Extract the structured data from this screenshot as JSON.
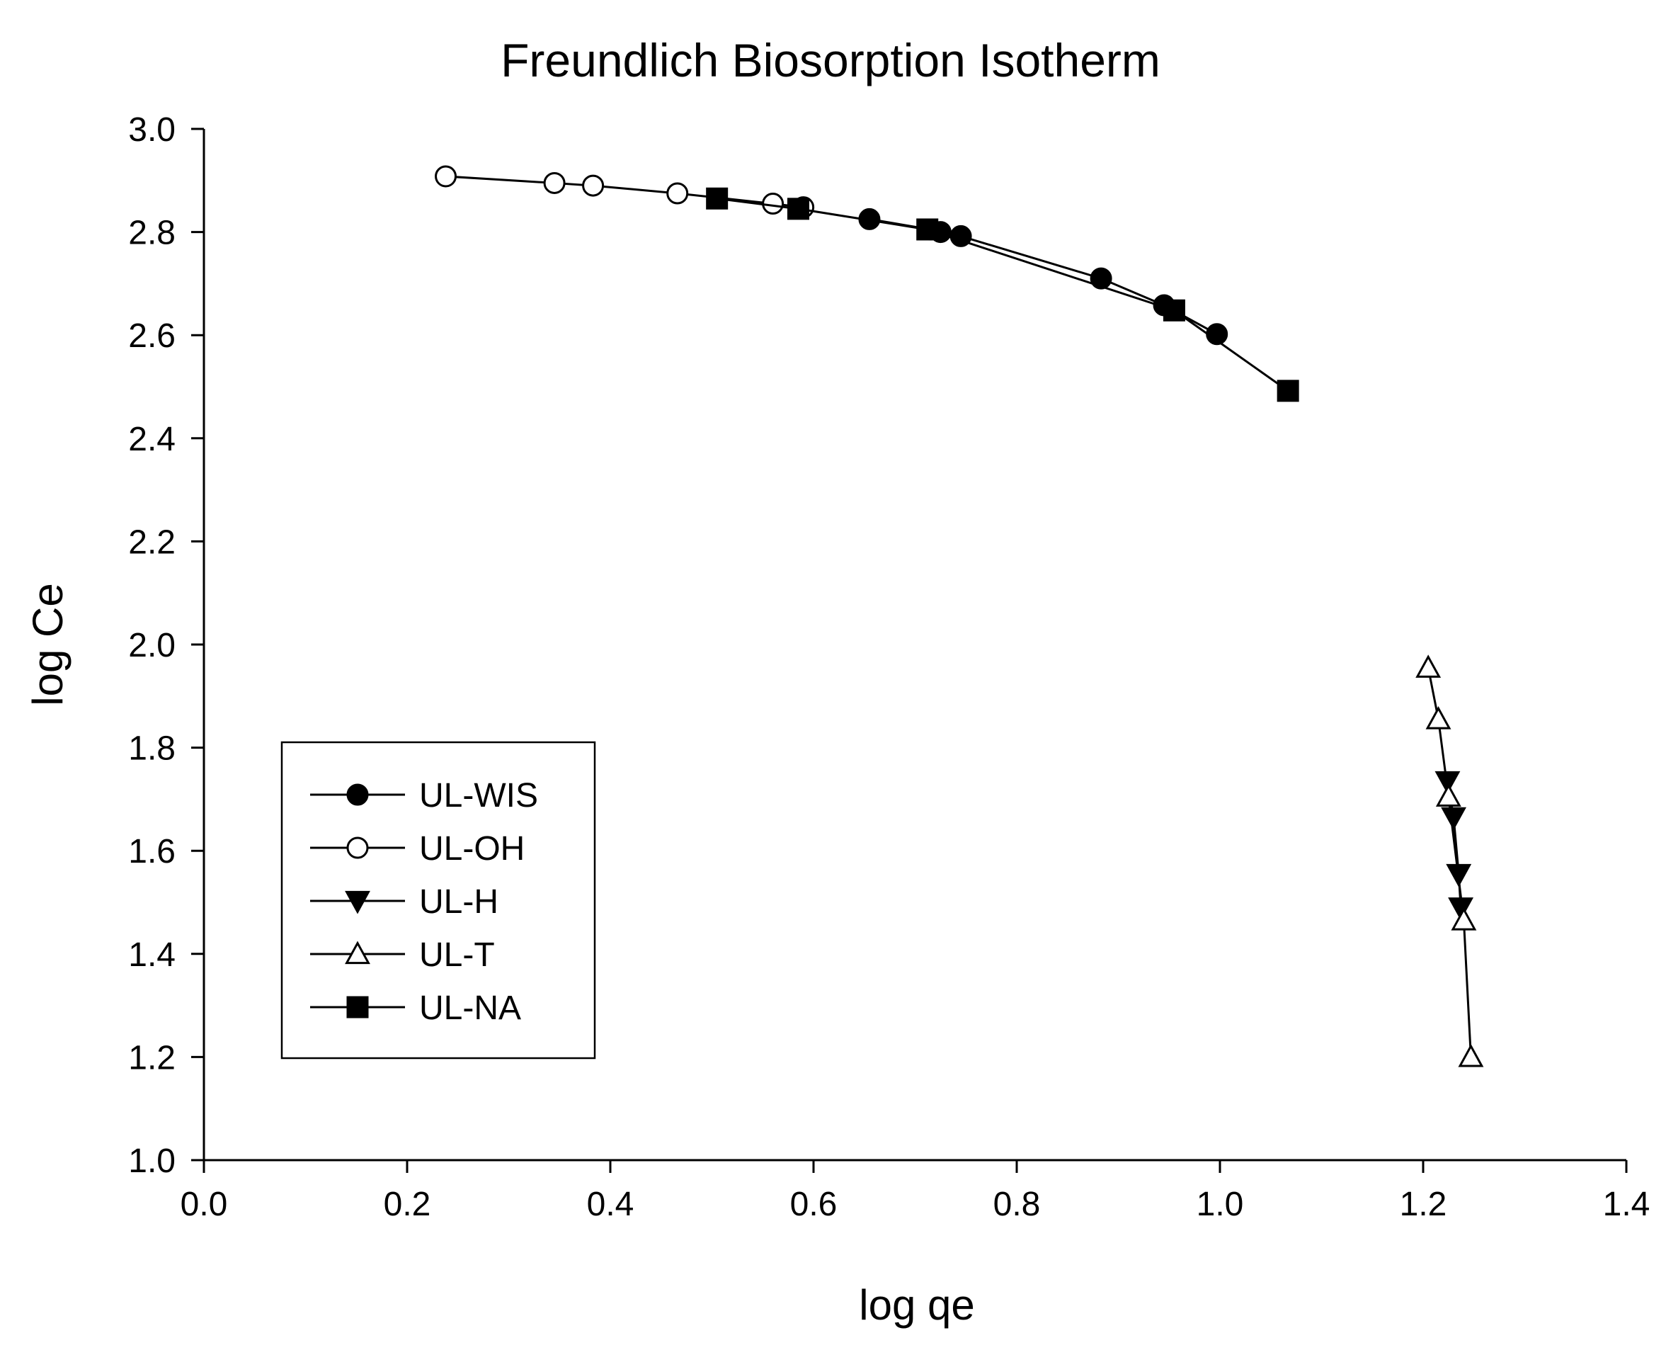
{
  "chart_data": {
    "type": "line",
    "title": "Freundlich Biosorption Isotherm",
    "xlabel": "log qe",
    "ylabel": "log Ce",
    "xlim": [
      0.0,
      1.4
    ],
    "ylim": [
      1.0,
      3.0
    ],
    "x_ticks": [
      "0.0",
      "0.2",
      "0.4",
      "0.6",
      "0.8",
      "1.0",
      "1.2",
      "1.4"
    ],
    "y_ticks": [
      "1.0",
      "1.2",
      "1.4",
      "1.6",
      "1.8",
      "2.0",
      "2.2",
      "2.4",
      "2.6",
      "2.8",
      "3.0"
    ],
    "grid": false,
    "legend_position": "left-middle",
    "series": [
      {
        "name": "UL-WIS",
        "marker": "filled-circle",
        "x": [
          0.655,
          0.715,
          0.725,
          0.745,
          0.883,
          0.945,
          0.997
        ],
        "y": [
          2.825,
          2.805,
          2.8,
          2.792,
          2.71,
          2.658,
          2.602
        ]
      },
      {
        "name": "UL-OH",
        "marker": "open-circle",
        "x": [
          0.238,
          0.345,
          0.383,
          0.466,
          0.56,
          0.59
        ],
        "y": [
          2.908,
          2.895,
          2.89,
          2.875,
          2.855,
          2.848
        ]
      },
      {
        "name": "UL-H",
        "marker": "filled-triangle-down",
        "x": [
          1.224,
          1.23,
          1.235,
          1.237
        ],
        "y": [
          1.735,
          1.665,
          1.555,
          1.49
        ]
      },
      {
        "name": "UL-T",
        "marker": "open-triangle-up",
        "x": [
          1.205,
          1.215,
          1.225,
          1.24,
          1.247
        ],
        "y": [
          1.955,
          1.855,
          1.705,
          1.465,
          1.2
        ]
      },
      {
        "name": "UL-NA",
        "marker": "filled-square",
        "x": [
          0.505,
          0.585,
          0.712,
          0.955,
          1.067
        ],
        "y": [
          2.865,
          2.845,
          2.805,
          2.648,
          2.492
        ]
      }
    ]
  }
}
